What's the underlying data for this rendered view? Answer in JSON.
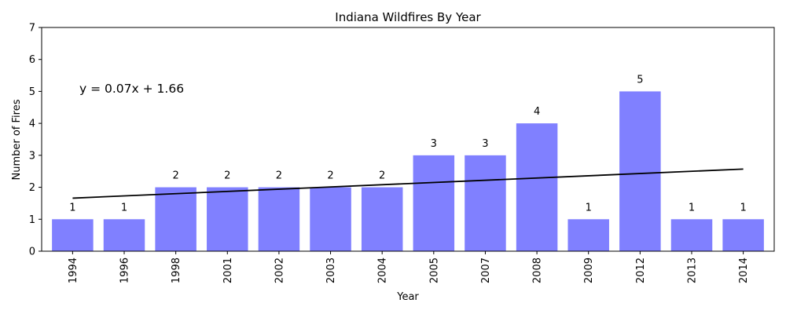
{
  "chart_data": {
    "type": "bar",
    "title": "Indiana Wildfires By Year",
    "xlabel": "Year",
    "ylabel": "Number of Fires",
    "categories": [
      "1994",
      "1996",
      "1998",
      "2001",
      "2002",
      "2003",
      "2004",
      "2005",
      "2007",
      "2008",
      "2009",
      "2012",
      "2013",
      "2014"
    ],
    "values": [
      1,
      1,
      2,
      2,
      2,
      2,
      2,
      3,
      3,
      4,
      1,
      5,
      1,
      1
    ],
    "data_labels": [
      "1",
      "1",
      "2",
      "2",
      "2",
      "2",
      "2",
      "3",
      "3",
      "4",
      "1",
      "5",
      "1",
      "1"
    ],
    "ylim": [
      0,
      7
    ],
    "yticks": [
      "0",
      "1",
      "2",
      "3",
      "4",
      "5",
      "6",
      "7"
    ],
    "grid": false,
    "bar_color": "#8080ff",
    "trendline": {
      "equation": "y = 0.07x + 1.66",
      "slope": 0.07,
      "intercept": 1.66,
      "color": "#000000"
    }
  }
}
